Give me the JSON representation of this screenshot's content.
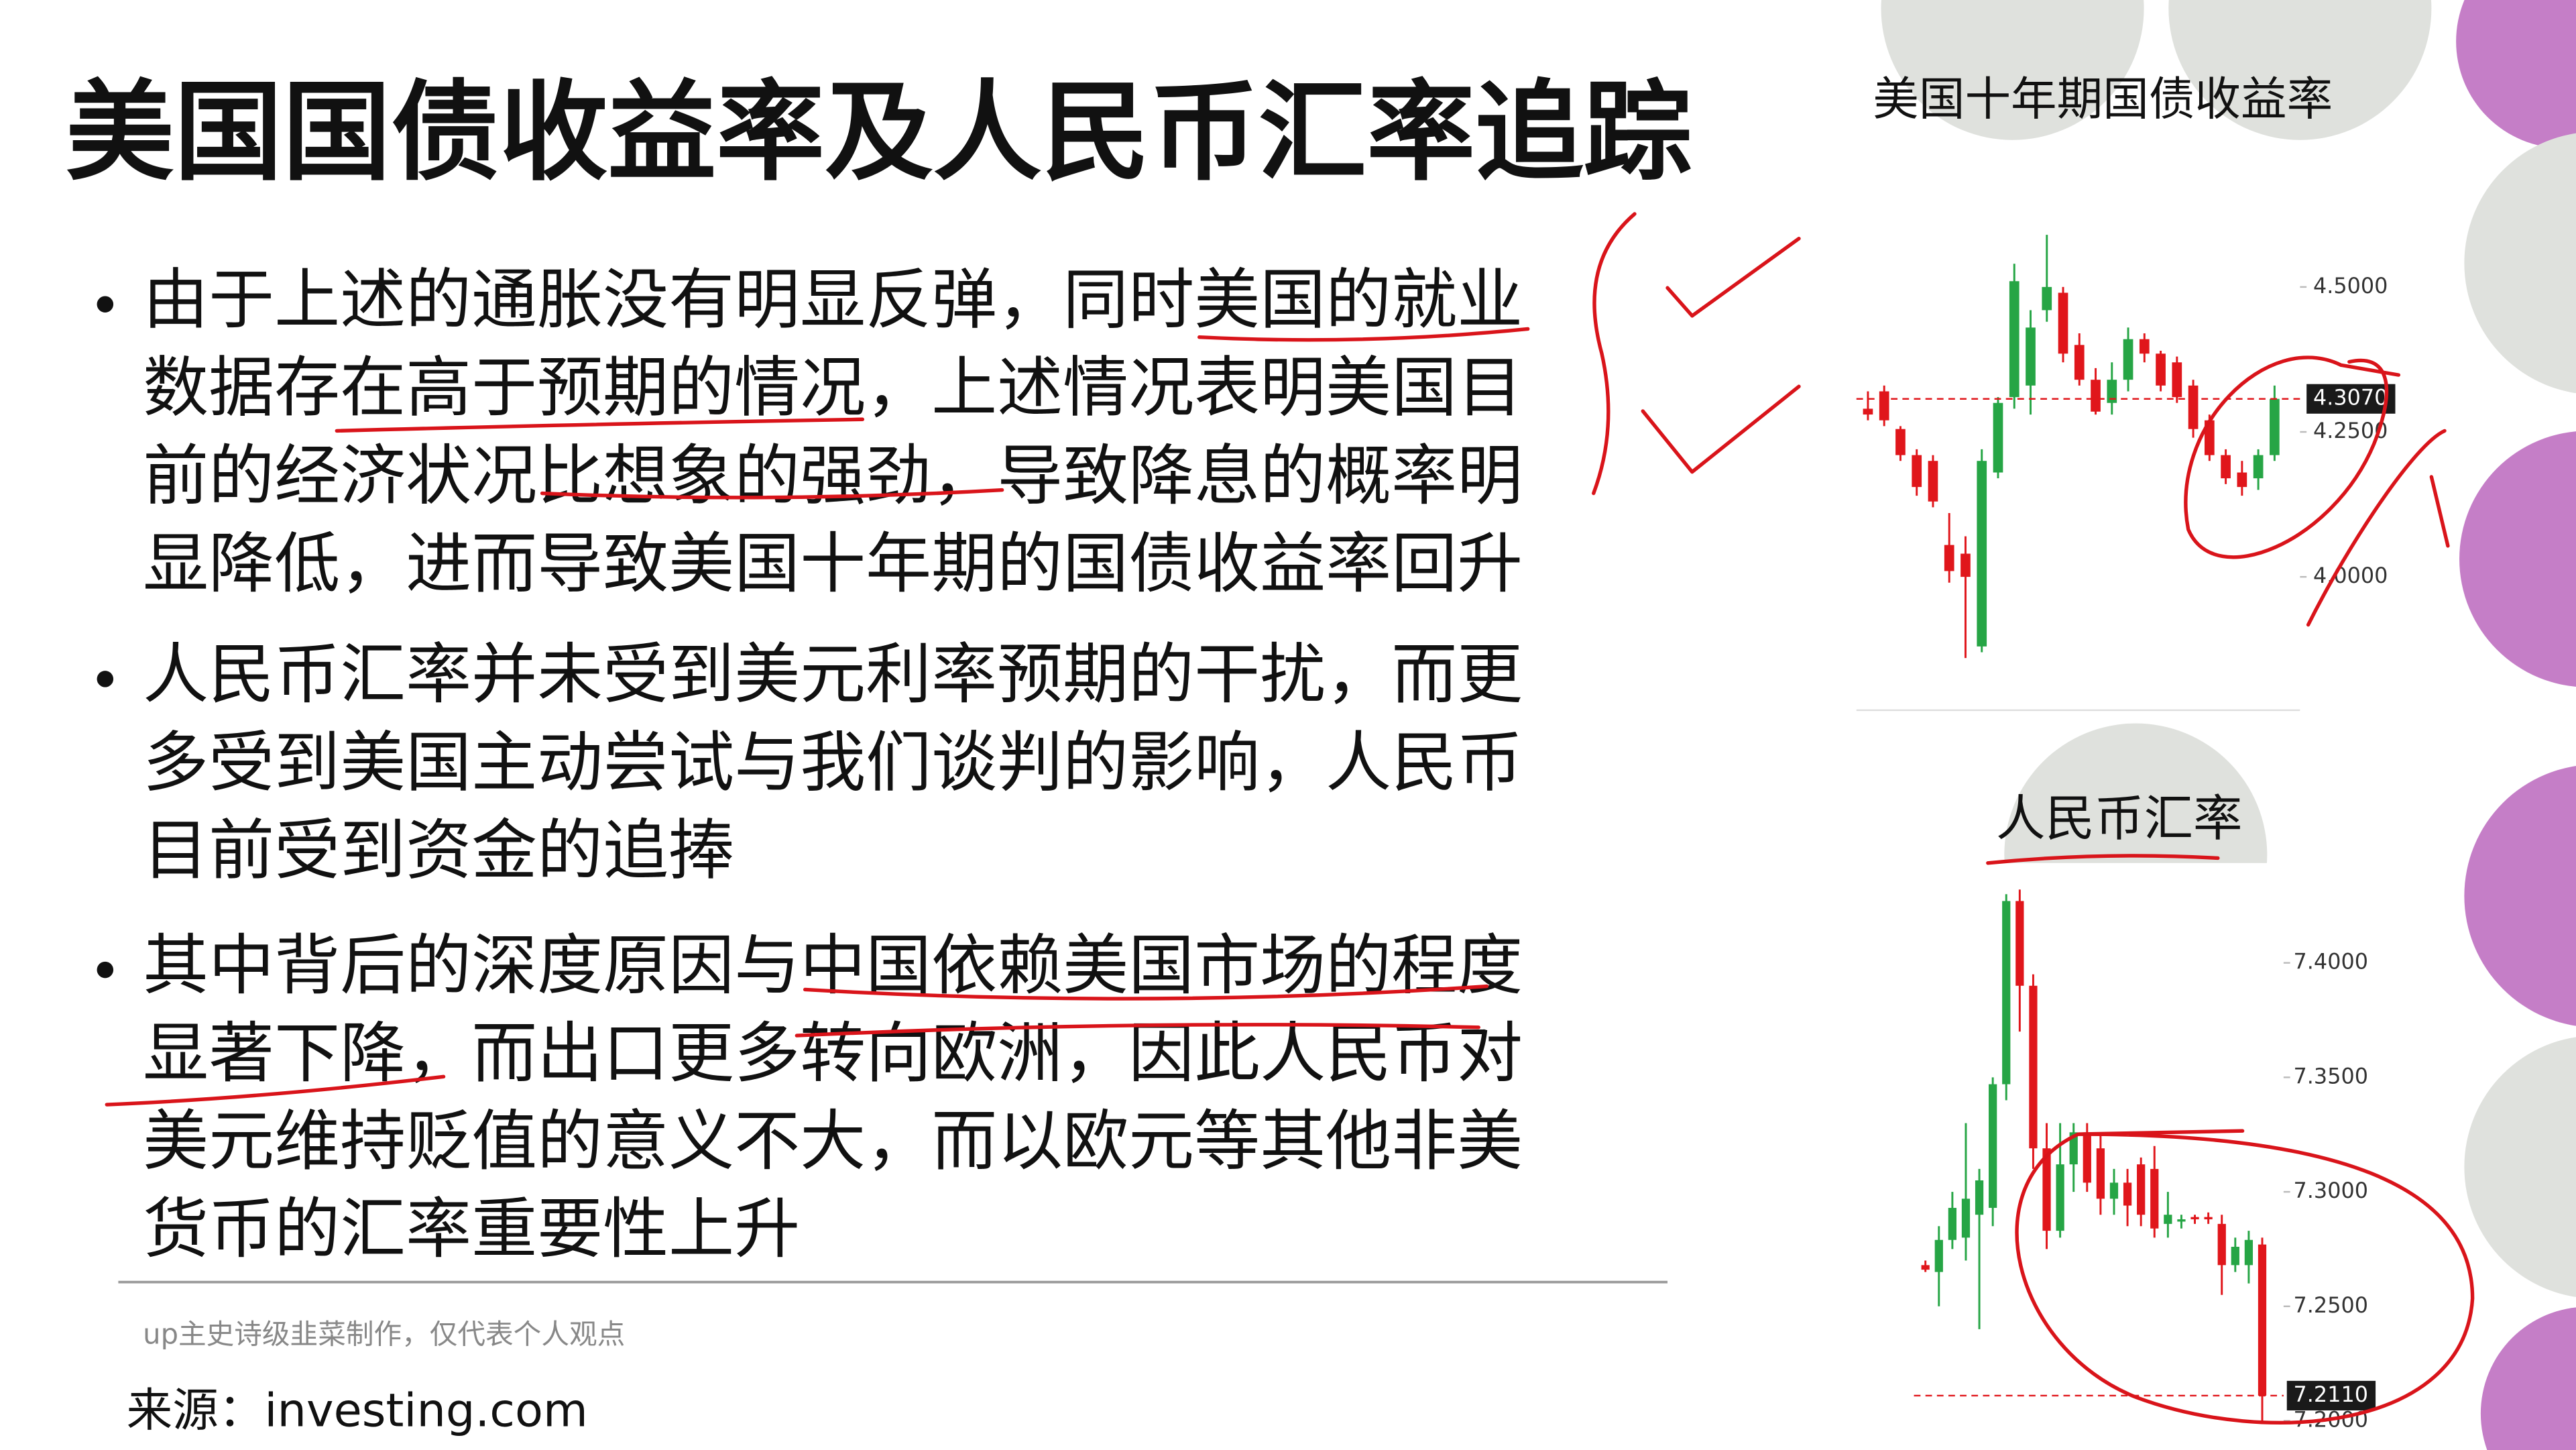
{
  "slide": {
    "title": "美国国债收益率及人民币汇率追踪",
    "bullets": [
      [
        "由于上述的通胀没有明显反弹，同时美国的就业",
        "数据存在高于预期的情况，上述情况表明美国目",
        "前的经济状况比想象的强劲，导致降息的概率明",
        "显降低，进而导致美国十年期的国债收益率回升"
      ],
      [
        "人民币汇率并未受到美元利率预期的干扰，而更",
        "多受到美国主动尝试与我们谈判的影响，人民币",
        "目前受到资金的追捧"
      ],
      [
        "其中背后的深度原因与中国依赖美国市场的程度",
        "显著下降，而出口更多转向欧洲，因此人民币对",
        "美元维持贬值的意义不大，而以欧元等其他非美",
        "货币的汇率重要性上升"
      ]
    ],
    "footnote": "up主史诗级韭菜制作，仅代表个人观点",
    "source": "来源：investing.com"
  },
  "chart_data": [
    {
      "type": "candlestick",
      "title": "美国十年期国债收益率",
      "up_color": "#26a545",
      "down_color": "#e0161b",
      "open": [
        4.29,
        4.32,
        4.255,
        4.21,
        4.2,
        4.055,
        4.04,
        3.88,
        4.18,
        4.31,
        4.33,
        4.46,
        4.49,
        4.4,
        4.34,
        4.3,
        4.34,
        4.41,
        4.385,
        4.37,
        4.33,
        4.27,
        4.21,
        4.18,
        4.17,
        4.21
      ],
      "high": [
        4.32,
        4.33,
        4.26,
        4.22,
        4.21,
        4.11,
        4.07,
        4.22,
        4.31,
        4.54,
        4.46,
        4.59,
        4.5,
        4.42,
        4.36,
        4.37,
        4.43,
        4.42,
        4.39,
        4.38,
        4.34,
        4.28,
        4.22,
        4.2,
        4.22,
        4.33
      ],
      "low": [
        4.27,
        4.26,
        4.2,
        4.14,
        4.12,
        3.99,
        3.86,
        3.87,
        4.17,
        4.29,
        4.28,
        4.44,
        4.37,
        4.33,
        4.28,
        4.28,
        4.32,
        4.37,
        4.32,
        4.3,
        4.24,
        4.2,
        4.16,
        4.14,
        4.15,
        4.2
      ],
      "close": [
        4.28,
        4.27,
        4.21,
        4.155,
        4.13,
        4.01,
        4.0,
        4.2,
        4.3,
        4.51,
        4.43,
        4.5,
        4.385,
        4.34,
        4.285,
        4.34,
        4.41,
        4.385,
        4.33,
        4.31,
        4.255,
        4.21,
        4.17,
        4.155,
        4.21,
        4.307
      ],
      "ylim": [
        3.77,
        4.66
      ],
      "yticks": [
        {
          "value": 4.0,
          "label": "4.0000"
        },
        {
          "value": 4.25,
          "label": "4.2500"
        },
        {
          "value": 4.5,
          "label": "4.5000"
        }
      ],
      "last_value": {
        "value": 4.307,
        "label": "4.3070"
      }
    },
    {
      "type": "candlestick",
      "title": "人民币汇率",
      "up_color": "#26a545",
      "down_color": "#e0161b",
      "open": [
        7.268,
        7.265,
        7.279,
        7.28,
        7.29,
        7.293,
        7.347,
        7.427,
        7.39,
        7.319,
        7.283,
        7.312,
        7.326,
        7.319,
        7.297,
        7.304,
        7.312,
        7.31,
        7.286,
        7.287,
        7.289,
        7.289,
        7.286,
        7.268,
        7.268,
        7.277
      ],
      "high": [
        7.27,
        7.285,
        7.3,
        7.33,
        7.31,
        7.35,
        7.43,
        7.432,
        7.395,
        7.33,
        7.33,
        7.33,
        7.33,
        7.325,
        7.31,
        7.31,
        7.315,
        7.32,
        7.3,
        7.29,
        7.29,
        7.291,
        7.29,
        7.28,
        7.283,
        7.28
      ],
      "low": [
        7.265,
        7.25,
        7.275,
        7.27,
        7.24,
        7.285,
        7.34,
        7.37,
        7.31,
        7.275,
        7.28,
        7.3,
        7.3,
        7.29,
        7.29,
        7.285,
        7.285,
        7.28,
        7.28,
        7.284,
        7.286,
        7.286,
        7.255,
        7.265,
        7.26,
        7.2
      ],
      "close": [
        7.266,
        7.279,
        7.293,
        7.297,
        7.305,
        7.347,
        7.427,
        7.39,
        7.319,
        7.283,
        7.312,
        7.326,
        7.304,
        7.297,
        7.304,
        7.294,
        7.29,
        7.284,
        7.29,
        7.288,
        7.288,
        7.288,
        7.268,
        7.276,
        7.279,
        7.211
      ],
      "ylim": [
        7.196,
        7.44
      ],
      "yticks": [
        {
          "value": 7.2,
          "label": "7.2000"
        },
        {
          "value": 7.25,
          "label": "7.2500"
        },
        {
          "value": 7.3,
          "label": "7.3000"
        },
        {
          "value": 7.35,
          "label": "7.3500"
        },
        {
          "value": 7.4,
          "label": "7.4000"
        }
      ],
      "last_value": {
        "value": 7.211,
        "label": "7.2110"
      }
    }
  ]
}
